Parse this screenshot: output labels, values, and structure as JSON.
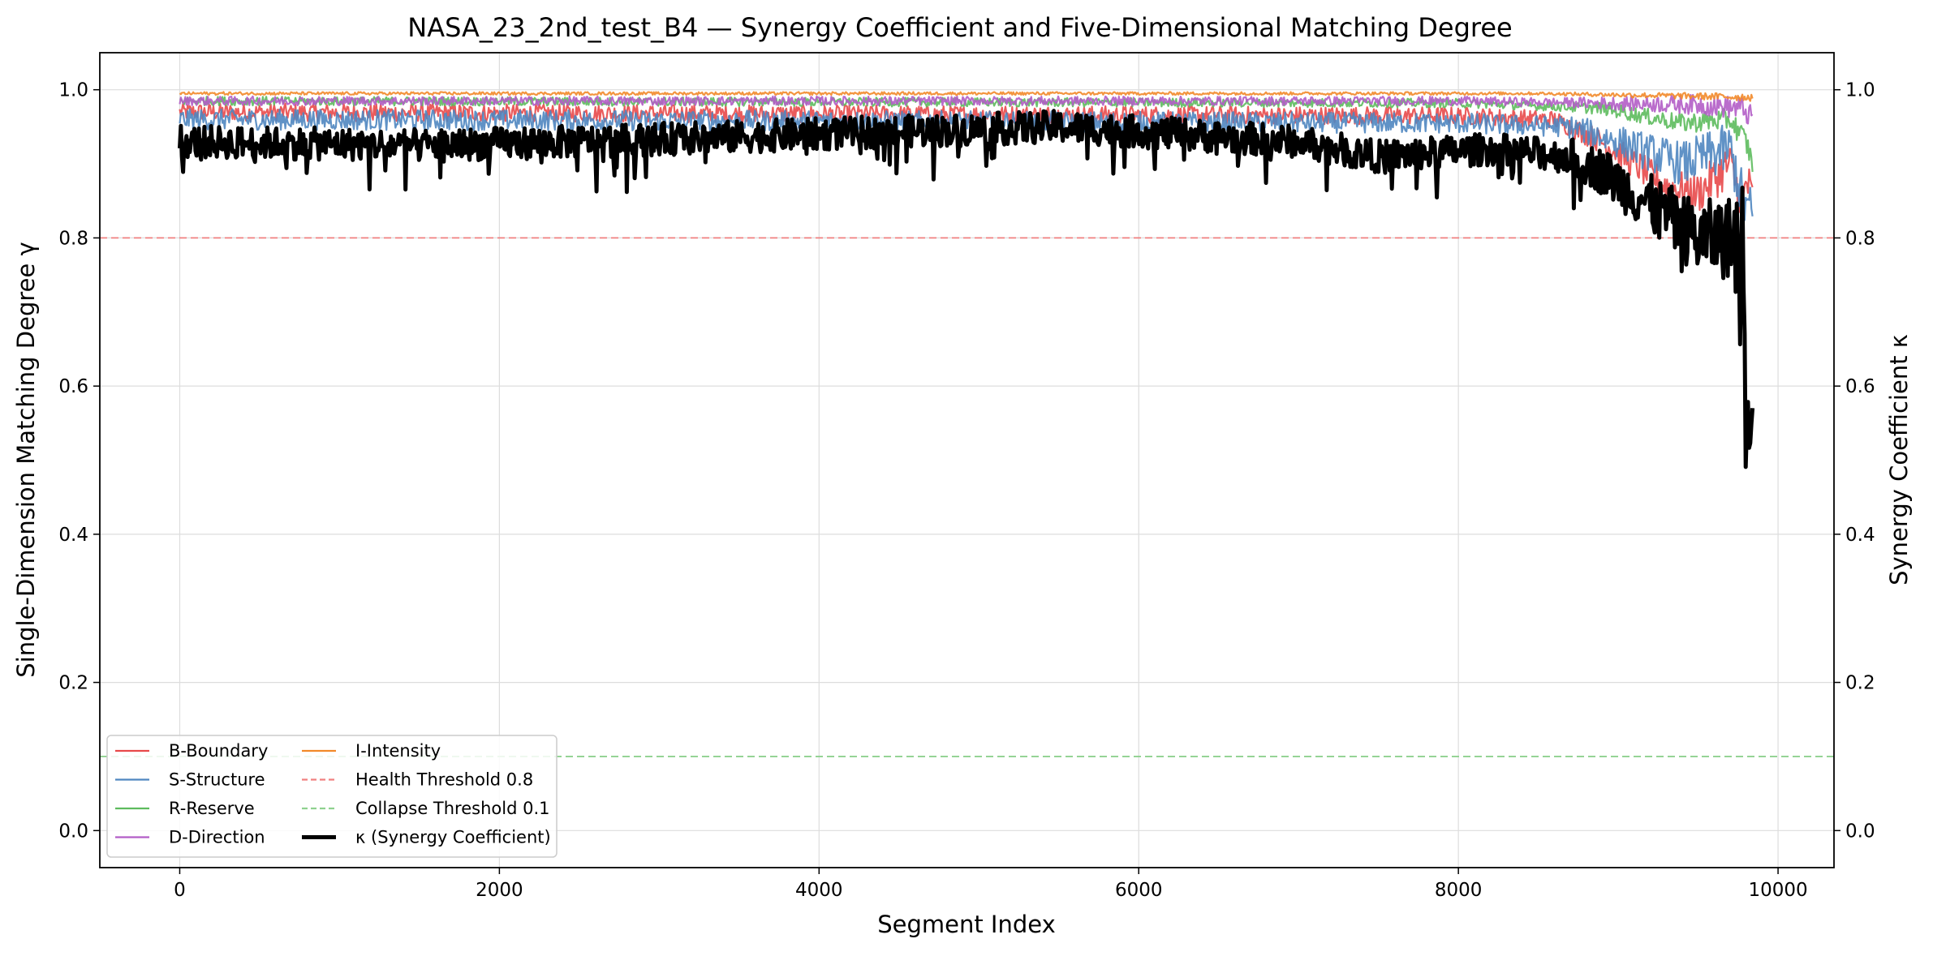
{
  "chart_data": {
    "type": "line",
    "title": "NASA_23_2nd_test_B4 — Synergy Coefficient and Five-Dimensional Matching Degree",
    "xlabel": "Segment Index",
    "ylabel": "Single-Dimension Matching Degree γ",
    "y2label": "Synergy Coefficient κ",
    "xlim": [
      -500,
      10350
    ],
    "ylim": [
      -0.05,
      1.05
    ],
    "y2lim": [
      -0.05,
      1.05
    ],
    "x_ticks": [
      0,
      2000,
      4000,
      6000,
      8000,
      10000
    ],
    "x_tick_labels": [
      "0",
      "2000",
      "4000",
      "6000",
      "8000",
      "10000"
    ],
    "y_ticks": [
      0.0,
      0.2,
      0.4,
      0.6,
      0.8,
      1.0
    ],
    "y_tick_labels": [
      "0.0",
      "0.2",
      "0.4",
      "0.6",
      "0.8",
      "1.0"
    ],
    "y2_ticks": [
      0.0,
      0.2,
      0.4,
      0.6,
      0.8,
      1.0
    ],
    "y2_tick_labels": [
      "0.0",
      "0.2",
      "0.4",
      "0.6",
      "0.8",
      "1.0"
    ],
    "grid": true,
    "legend_placement": "lower-left",
    "x_max": 9840,
    "series": [
      {
        "name": "B-Boundary",
        "color": "#e8494a",
        "axis": "left",
        "knots": [
          [
            0,
            0.97
          ],
          [
            8000,
            0.965
          ],
          [
            8600,
            0.96
          ],
          [
            8900,
            0.93
          ],
          [
            9100,
            0.9
          ],
          [
            9300,
            0.87
          ],
          [
            9500,
            0.86
          ],
          [
            9700,
            0.9
          ],
          [
            9780,
            0.84
          ],
          [
            9800,
            0.88
          ],
          [
            9840,
            0.85
          ]
        ],
        "noise": 0.012
      },
      {
        "name": "S-Structure",
        "color": "#4f86c0",
        "axis": "left",
        "knots": [
          [
            0,
            0.96
          ],
          [
            4000,
            0.958
          ],
          [
            8000,
            0.955
          ],
          [
            8700,
            0.95
          ],
          [
            9000,
            0.93
          ],
          [
            9400,
            0.9
          ],
          [
            9700,
            0.92
          ],
          [
            9780,
            0.85
          ],
          [
            9840,
            0.83
          ]
        ],
        "noise": 0.014
      },
      {
        "name": "R-Reserve",
        "color": "#5dbb5d",
        "axis": "left",
        "knots": [
          [
            0,
            0.985
          ],
          [
            8000,
            0.982
          ],
          [
            8900,
            0.975
          ],
          [
            9400,
            0.955
          ],
          [
            9700,
            0.96
          ],
          [
            9800,
            0.93
          ],
          [
            9840,
            0.9
          ]
        ],
        "noise": 0.006
      },
      {
        "name": "D-Direction",
        "color": "#b25dc7",
        "axis": "left",
        "knots": [
          [
            0,
            0.985
          ],
          [
            8000,
            0.985
          ],
          [
            9500,
            0.98
          ],
          [
            9780,
            0.975
          ],
          [
            9840,
            0.96
          ]
        ],
        "noise": 0.006
      },
      {
        "name": "I-Intensity",
        "color": "#f2892a",
        "axis": "left",
        "knots": [
          [
            0,
            0.995
          ],
          [
            8500,
            0.995
          ],
          [
            9840,
            0.99
          ]
        ],
        "noise": 0.002
      },
      {
        "name": "κ (Synergy Coefficient)",
        "color": "#000000",
        "axis": "right",
        "knots": [
          [
            0,
            0.93
          ],
          [
            1500,
            0.925
          ],
          [
            2500,
            0.93
          ],
          [
            4000,
            0.94
          ],
          [
            5500,
            0.95
          ],
          [
            7000,
            0.93
          ],
          [
            7500,
            0.91
          ],
          [
            8200,
            0.92
          ],
          [
            8700,
            0.91
          ],
          [
            8900,
            0.89
          ],
          [
            9100,
            0.86
          ],
          [
            9300,
            0.83
          ],
          [
            9500,
            0.8
          ],
          [
            9700,
            0.8
          ],
          [
            9780,
            0.82
          ],
          [
            9790,
            0.7
          ],
          [
            9800,
            0.5
          ],
          [
            9810,
            0.62
          ],
          [
            9820,
            0.55
          ],
          [
            9840,
            0.6
          ]
        ],
        "noise": 0.022
      }
    ],
    "threshold_lines": [
      {
        "name": "Health Threshold 0.8",
        "value": 0.8,
        "color": "#f08080",
        "style": "dashed"
      },
      {
        "name": "Collapse Threshold 0.1",
        "value": 0.1,
        "color": "#8fd18f",
        "style": "dashed"
      }
    ],
    "legend": [
      {
        "label": "B-Boundary",
        "color": "#e8494a",
        "style": "solid"
      },
      {
        "label": "S-Structure",
        "color": "#4f86c0",
        "style": "solid"
      },
      {
        "label": "R-Reserve",
        "color": "#5dbb5d",
        "style": "solid"
      },
      {
        "label": "D-Direction",
        "color": "#b25dc7",
        "style": "solid"
      },
      {
        "label": "I-Intensity",
        "color": "#f2892a",
        "style": "solid"
      },
      {
        "label": "Health Threshold 0.8",
        "color": "#f08080",
        "style": "dashed"
      },
      {
        "label": "Collapse Threshold 0.1",
        "color": "#8fd18f",
        "style": "dashed"
      },
      {
        "label": "κ (Synergy Coefficient)",
        "color": "#000000",
        "style": "thick"
      }
    ]
  }
}
